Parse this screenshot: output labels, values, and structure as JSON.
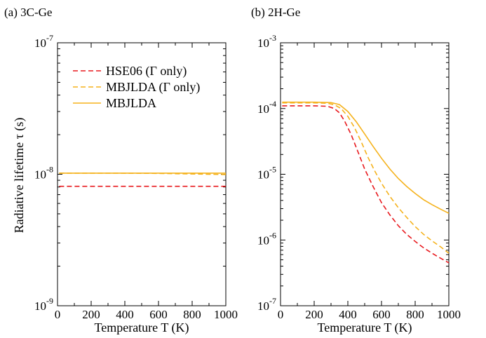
{
  "chart_data": [
    {
      "type": "line",
      "title": "(a) 3C-Ge",
      "xlabel": "Temperature T (K)",
      "ylabel": "Radiative lifetime τ (s)",
      "xlim": [
        0,
        1000
      ],
      "ylim": [
        1e-09,
        1e-07
      ],
      "yscale": "log",
      "xticks": [
        "0",
        "200",
        "400",
        "600",
        "800",
        "1000"
      ],
      "yticks": [
        {
          "base": "10",
          "exp": "-9"
        },
        {
          "base": "10",
          "exp": "-8"
        },
        {
          "base": "10",
          "exp": "-7"
        }
      ],
      "legend": {
        "position": "top-left"
      },
      "series": [
        {
          "name": "HSE06 (Γ only)",
          "color": "#e8191e",
          "dash": "dashed",
          "x": [
            10,
            1000
          ],
          "y": [
            8.1e-09,
            8.1e-09
          ]
        },
        {
          "name": "MBJLDA (Γ only)",
          "color": "#f5b21c",
          "dash": "dashed",
          "x": [
            10,
            300,
            600,
            800,
            1000
          ],
          "y": [
            1.02e-08,
            1.02e-08,
            1.015e-08,
            1.005e-08,
            9.95e-09
          ]
        },
        {
          "name": "MBJLDA",
          "color": "#f5b21c",
          "dash": "solid",
          "x": [
            10,
            1000
          ],
          "y": [
            1.02e-08,
            1.02e-08
          ]
        }
      ]
    },
    {
      "type": "line",
      "title": "(b) 2H-Ge",
      "xlabel": "Temperature T (K)",
      "ylabel": "",
      "xlim": [
        0,
        1000
      ],
      "ylim": [
        1e-07,
        0.001
      ],
      "yscale": "log",
      "xticks": [
        "0",
        "200",
        "400",
        "600",
        "800",
        "1000"
      ],
      "yticks": [
        {
          "base": "10",
          "exp": "-7"
        },
        {
          "base": "10",
          "exp": "-6"
        },
        {
          "base": "10",
          "exp": "-5"
        },
        {
          "base": "10",
          "exp": "-4"
        },
        {
          "base": "10",
          "exp": "-3"
        }
      ],
      "series": [
        {
          "name": "HSE06 (Γ only)",
          "color": "#e8191e",
          "dash": "dashed",
          "x": [
            10,
            100,
            200,
            280,
            320,
            350,
            380,
            420,
            460,
            500,
            550,
            600,
            650,
            700,
            750,
            800,
            850,
            900,
            950,
            1000
          ],
          "y": [
            0.00011,
            0.00011,
            0.00011,
            0.000108,
            0.0001,
            8.6e-05,
            6.5e-05,
            4e-05,
            2.2e-05,
            1.2e-05,
            6.5e-06,
            3.7e-06,
            2.4e-06,
            1.65e-06,
            1.22e-06,
            9.5e-07,
            7.6e-07,
            6.3e-07,
            5.3e-07,
            4.5e-07
          ]
        },
        {
          "name": "MBJLDA (Γ only)",
          "color": "#f5b21c",
          "dash": "dashed",
          "x": [
            10,
            100,
            200,
            280,
            320,
            360,
            400,
            440,
            480,
            520,
            560,
            600,
            650,
            700,
            750,
            800,
            850,
            900,
            950,
            1000
          ],
          "y": [
            0.000122,
            0.000122,
            0.000122,
            0.00012,
            0.000114,
            0.0001,
            7.6e-05,
            5.1e-05,
            3.1e-05,
            1.8e-05,
            1.12e-05,
            7.3e-06,
            4.6e-06,
            3.1e-06,
            2.2e-06,
            1.6e-06,
            1.22e-06,
            9.7e-07,
            7.9e-07,
            6.3e-07
          ]
        },
        {
          "name": "MBJLDA",
          "color": "#f5b21c",
          "dash": "solid",
          "x": [
            10,
            100,
            200,
            300,
            350,
            400,
            450,
            500,
            550,
            600,
            650,
            700,
            750,
            800,
            850,
            900,
            950,
            1000
          ],
          "y": [
            0.000125,
            0.000125,
            0.000125,
            0.000123,
            0.000115,
            9e-05,
            6.3e-05,
            4.1e-05,
            2.65e-05,
            1.75e-05,
            1.2e-05,
            8.6e-06,
            6.5e-06,
            5.1e-06,
            4.1e-06,
            3.45e-06,
            2.95e-06,
            2.55e-06
          ]
        }
      ]
    }
  ]
}
